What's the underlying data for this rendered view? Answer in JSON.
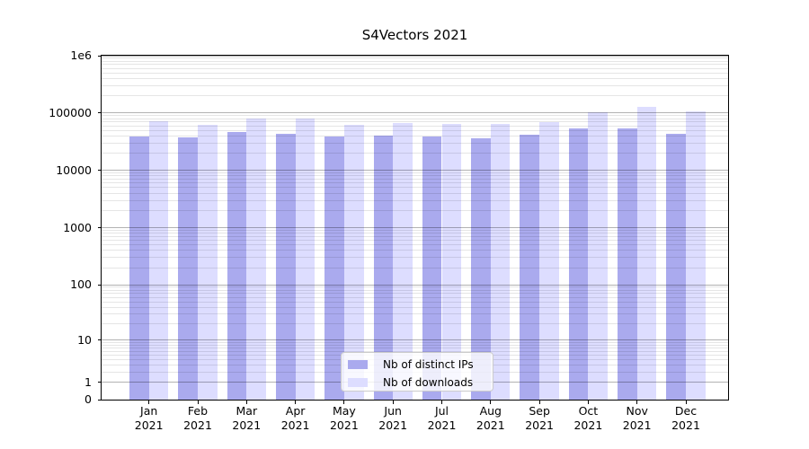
{
  "title": "S4Vectors 2021",
  "chart_data": {
    "type": "bar",
    "title": "S4Vectors 2021",
    "categories": [
      "Jan 2021",
      "Feb 2021",
      "Mar 2021",
      "Apr 2021",
      "May 2021",
      "Jun 2021",
      "Jul 2021",
      "Aug 2021",
      "Sep 2021",
      "Oct 2021",
      "Nov 2021",
      "Dec 2021"
    ],
    "series": [
      {
        "name": "Nb of distinct IPs",
        "color": "#aaaaee",
        "values": [
          39000,
          38000,
          46000,
          43500,
          38500,
          41000,
          38500,
          36000,
          41500,
          53000,
          54000,
          43000
        ]
      },
      {
        "name": "Nb of downloads",
        "color": "#ddddff",
        "values": [
          71000,
          62500,
          81000,
          81000,
          62500,
          68000,
          63500,
          63500,
          70000,
          105000,
          130000,
          107000
        ]
      }
    ],
    "xlabel": "",
    "ylabel": "",
    "yscale": "log10(1+y)",
    "ylim": [
      0,
      1000000
    ],
    "y_tick_values": [
      0,
      1,
      10,
      100,
      1000,
      10000,
      100000,
      1000000
    ],
    "y_tick_labels": [
      "0",
      "1",
      "10",
      "100",
      "1000",
      "10000",
      "100000",
      "1e6"
    ],
    "grid": "major and minor horizontal, drawn over bars",
    "legend_position": "lower center"
  },
  "colors": {
    "background": "#ffffff",
    "axis": "#000000",
    "grid_major": "#b3b3b3",
    "grid_minor": "#e6e6e6",
    "legend_border": "#cccccc"
  }
}
